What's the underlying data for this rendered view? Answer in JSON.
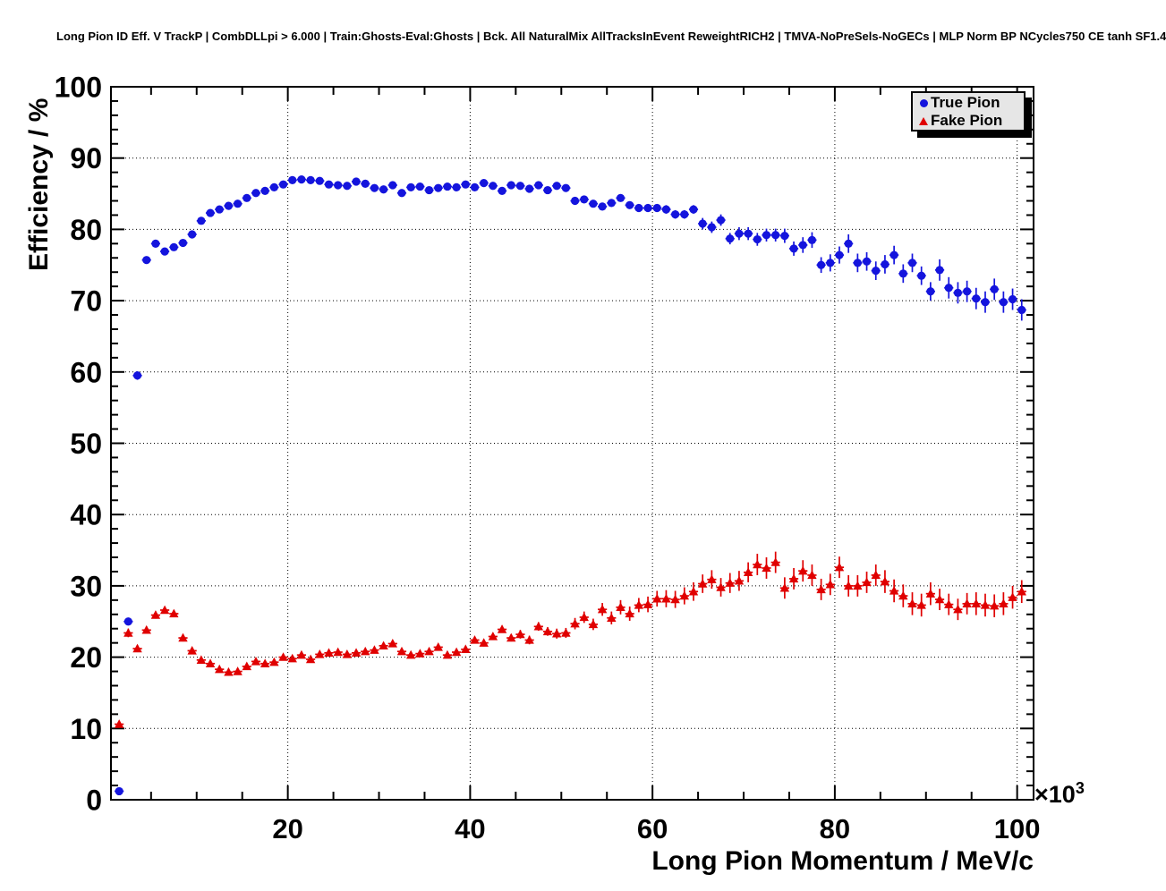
{
  "header": {
    "title": "Long Pion ID Eff. V TrackP | CombDLLpi > 6.000 | Train:Ghosts-Eval:Ghosts | Bck. All NaturalMix AllTracksInEvent ReweightRICH2 | TMVA-NoPreSels-NoGECs | MLP Norm BP NCycles750 CE tanh SF1.4"
  },
  "chart_data": {
    "type": "scatter",
    "title": "Long Pion ID Eff. V TrackP | CombDLLpi > 6.000 | Train:Ghosts-Eval:Ghosts | Bck. All NaturalMix AllTracksInEvent ReweightRICH2 | TMVA-NoPreSels-NoGECs | MLP Norm BP NCycles750 CE tanh SF1.4",
    "xlabel": "Long Pion Momentum / MeV/c",
    "ylabel": "Efficiency / %",
    "x_exponent_label": "×10",
    "x_exponent_power": "3",
    "xlim": [
      600,
      101800
    ],
    "ylim": [
      0,
      100
    ],
    "x_ticks": [
      20000,
      40000,
      60000,
      80000,
      100000
    ],
    "x_tick_labels": [
      "20",
      "40",
      "60",
      "80",
      "100"
    ],
    "x_minor_step": 5000,
    "y_ticks": [
      0,
      10,
      20,
      30,
      40,
      50,
      60,
      70,
      80,
      90,
      100
    ],
    "y_minor_step": 2,
    "grid": "dotted",
    "legend_position": "top-right",
    "x_half_width": 500,
    "x": [
      1500,
      2500,
      3500,
      4500,
      5500,
      6500,
      7500,
      8500,
      9500,
      10500,
      11500,
      12500,
      13500,
      14500,
      15500,
      16500,
      17500,
      18500,
      19500,
      20500,
      21500,
      22500,
      23500,
      24500,
      25500,
      26500,
      27500,
      28500,
      29500,
      30500,
      31500,
      32500,
      33500,
      34500,
      35500,
      36500,
      37500,
      38500,
      39500,
      40500,
      41500,
      42500,
      43500,
      44500,
      45500,
      46500,
      47500,
      48500,
      49500,
      50500,
      51500,
      52500,
      53500,
      54500,
      55500,
      56500,
      57500,
      58500,
      59500,
      60500,
      61500,
      62500,
      63500,
      64500,
      65500,
      66500,
      67500,
      68500,
      69500,
      70500,
      71500,
      72500,
      73500,
      74500,
      75500,
      76500,
      77500,
      78500,
      79500,
      80500,
      81500,
      82500,
      83500,
      84500,
      85500,
      86500,
      87500,
      88500,
      89500,
      90500,
      91500,
      92500,
      93500,
      94500,
      95500,
      96500,
      97500,
      98500,
      99500,
      100500
    ],
    "series": [
      {
        "name": "True Pion",
        "marker": "circle",
        "color": "#1414dd",
        "values": [
          1.2,
          25.0,
          59.5,
          75.7,
          78.0,
          76.9,
          77.5,
          78.1,
          79.3,
          81.2,
          82.3,
          82.8,
          83.3,
          83.6,
          84.4,
          85.1,
          85.4,
          85.9,
          86.3,
          86.9,
          87.0,
          86.9,
          86.8,
          86.3,
          86.2,
          86.1,
          86.7,
          86.4,
          85.8,
          85.6,
          86.2,
          85.1,
          85.9,
          86.0,
          85.5,
          85.8,
          86.0,
          85.9,
          86.3,
          85.9,
          86.5,
          86.1,
          85.4,
          86.2,
          86.1,
          85.7,
          86.2,
          85.5,
          86.1,
          85.8,
          84.0,
          84.2,
          83.6,
          83.2,
          83.7,
          84.4,
          83.4,
          83.0,
          83.0,
          83.0,
          82.8,
          82.1,
          82.1,
          82.8,
          80.8,
          80.3,
          81.3,
          78.7,
          79.4,
          79.4,
          78.6,
          79.2,
          79.2,
          79.1,
          77.3,
          77.8,
          78.5,
          75.0,
          75.3,
          76.4,
          78.0,
          75.3,
          75.5,
          74.2,
          75.1,
          76.4,
          73.8,
          75.3,
          73.5,
          71.3,
          74.3,
          71.8,
          71.1,
          71.3,
          70.3,
          69.8,
          71.6,
          69.8,
          70.2,
          68.7
        ],
        "errors": [
          0.2,
          0.5,
          0.6,
          0.4,
          0.4,
          0.4,
          0.4,
          0.4,
          0.35,
          0.35,
          0.3,
          0.3,
          0.3,
          0.3,
          0.3,
          0.3,
          0.3,
          0.3,
          0.3,
          0.3,
          0.3,
          0.3,
          0.3,
          0.3,
          0.3,
          0.3,
          0.3,
          0.3,
          0.3,
          0.3,
          0.3,
          0.3,
          0.3,
          0.3,
          0.3,
          0.3,
          0.3,
          0.3,
          0.3,
          0.3,
          0.3,
          0.3,
          0.3,
          0.3,
          0.3,
          0.3,
          0.3,
          0.3,
          0.3,
          0.3,
          0.45,
          0.45,
          0.45,
          0.45,
          0.45,
          0.45,
          0.45,
          0.45,
          0.45,
          0.45,
          0.6,
          0.6,
          0.6,
          0.6,
          0.8,
          0.8,
          0.8,
          0.8,
          0.9,
          0.9,
          0.9,
          0.9,
          0.9,
          1.0,
          1.0,
          1.1,
          1.1,
          1.1,
          1.2,
          1.2,
          1.3,
          1.3,
          1.3,
          1.3,
          1.3,
          1.3,
          1.3,
          1.3,
          1.3,
          1.3,
          1.5,
          1.5,
          1.5,
          1.5,
          1.5,
          1.5,
          1.5,
          1.5,
          1.5,
          1.5
        ]
      },
      {
        "name": "Fake Pion",
        "marker": "triangle",
        "color": "#e00000",
        "values": [
          10.6,
          23.4,
          21.2,
          23.8,
          25.9,
          26.6,
          26.1,
          22.7,
          20.9,
          19.6,
          19.1,
          18.3,
          17.9,
          18.0,
          18.7,
          19.4,
          19.1,
          19.3,
          20.0,
          19.8,
          20.3,
          19.7,
          20.4,
          20.6,
          20.7,
          20.4,
          20.6,
          20.8,
          21.0,
          21.6,
          21.9,
          20.8,
          20.3,
          20.5,
          20.8,
          21.4,
          20.3,
          20.7,
          21.1,
          22.4,
          22.0,
          22.9,
          23.9,
          22.7,
          23.2,
          22.4,
          24.3,
          23.6,
          23.3,
          23.4,
          24.7,
          25.6,
          24.6,
          26.7,
          25.5,
          27.0,
          26.1,
          27.3,
          27.4,
          28.2,
          28.2,
          28.1,
          28.6,
          29.2,
          30.3,
          30.9,
          29.8,
          30.4,
          30.7,
          31.9,
          33.0,
          32.5,
          33.3,
          29.7,
          31.0,
          32.1,
          31.5,
          29.5,
          30.2,
          32.6,
          30.0,
          30.0,
          30.5,
          31.5,
          30.6,
          29.3,
          28.6,
          27.5,
          27.3,
          28.9,
          28.1,
          27.4,
          26.7,
          27.5,
          27.5,
          27.3,
          27.2,
          27.5,
          28.4,
          29.2
        ],
        "errors": [
          0.4,
          0.6,
          0.5,
          0.5,
          0.5,
          0.5,
          0.5,
          0.5,
          0.4,
          0.4,
          0.35,
          0.35,
          0.35,
          0.35,
          0.35,
          0.35,
          0.35,
          0.35,
          0.35,
          0.35,
          0.35,
          0.35,
          0.35,
          0.35,
          0.35,
          0.35,
          0.35,
          0.35,
          0.35,
          0.35,
          0.45,
          0.45,
          0.45,
          0.45,
          0.45,
          0.45,
          0.45,
          0.45,
          0.45,
          0.45,
          0.5,
          0.5,
          0.5,
          0.5,
          0.6,
          0.6,
          0.6,
          0.6,
          0.7,
          0.7,
          0.8,
          0.8,
          0.8,
          0.9,
          0.9,
          1.0,
          1.0,
          1.0,
          1.1,
          1.1,
          1.2,
          1.2,
          1.2,
          1.3,
          1.3,
          1.3,
          1.3,
          1.4,
          1.4,
          1.4,
          1.5,
          1.5,
          1.5,
          1.5,
          1.5,
          1.5,
          1.5,
          1.5,
          1.5,
          1.5,
          1.5,
          1.5,
          1.5,
          1.5,
          1.6,
          1.6,
          1.6,
          1.6,
          1.6,
          1.6,
          1.5,
          1.5,
          1.5,
          1.5,
          1.6,
          1.6,
          1.6,
          1.6,
          1.6,
          1.6
        ]
      }
    ]
  }
}
